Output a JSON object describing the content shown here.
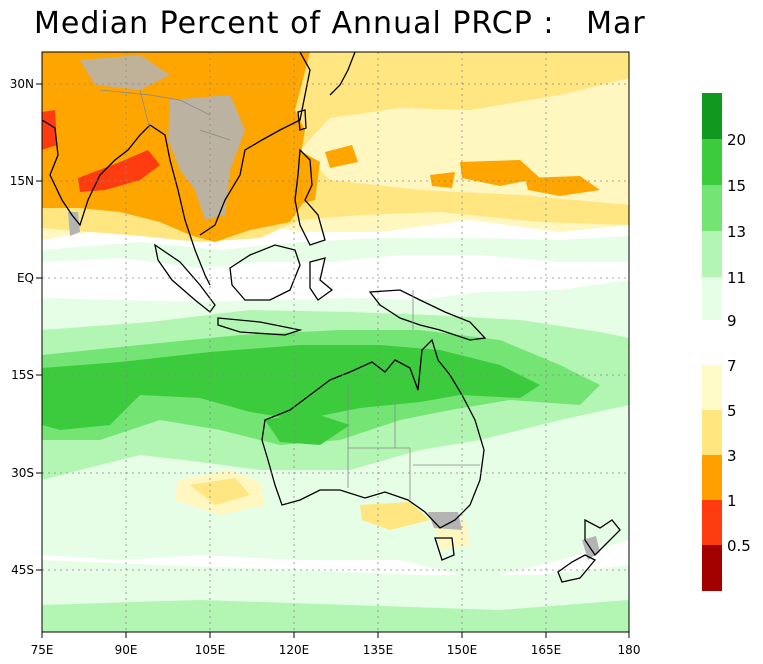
{
  "title": "Median Percent of Annual PRCP :   Mar",
  "map": {
    "x_ticks": [
      "75E",
      "90E",
      "105E",
      "120E",
      "135E",
      "150E",
      "165E",
      "180"
    ],
    "y_ticks": [
      "30N",
      "15N",
      "EQ",
      "15S",
      "30S",
      "45S"
    ],
    "grid": "dotted"
  },
  "colorbar": {
    "labels_upper": [
      "20",
      "15",
      "13",
      "11",
      "9"
    ],
    "labels_lower": [
      "7",
      "5",
      "3",
      "1",
      "0.5"
    ],
    "colors_upper": [
      "#0f9a1f",
      "#3ccb3c",
      "#74e474",
      "#b3f5b3",
      "#e6fde6"
    ],
    "colors_lower": [
      "#fffbc8",
      "#ffe67f",
      "#ffa000",
      "#ff3c0f",
      "#a30000"
    ]
  },
  "palette": {
    "orange": "#ffa500",
    "light_orange": "#ffd56e",
    "yellow": "#ffe680",
    "pale_yellow": "#fff6c0",
    "pale_green": "#e6fde6",
    "light_green": "#b3f5b3",
    "green": "#74e474",
    "mid_green": "#3ccb3c",
    "red": "#ff3c0f",
    "grey": "#b4b4b4"
  }
}
